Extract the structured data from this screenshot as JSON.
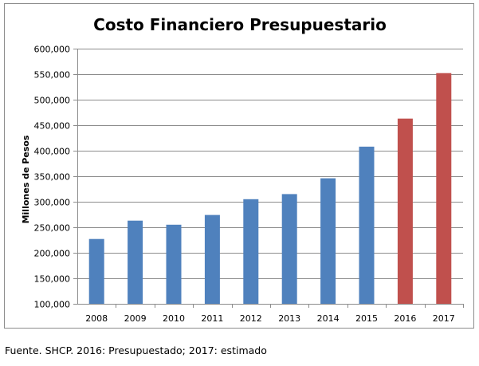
{
  "chart_data": {
    "type": "bar",
    "title": "Costo Financiero Presupuestario",
    "xlabel": "",
    "ylabel": "Millones de Pesos",
    "ylim": [
      100000,
      600000
    ],
    "ytick_step": 50000,
    "ytick_labels": [
      "100,000",
      "150,000",
      "200,000",
      "250,000",
      "300,000",
      "350,000",
      "400,000",
      "450,000",
      "500,000",
      "550,000",
      "600,000"
    ],
    "grid": true,
    "legend": "none",
    "categories": [
      "2008",
      "2009",
      "2010",
      "2011",
      "2012",
      "2013",
      "2014",
      "2015",
      "2016",
      "2017"
    ],
    "values": [
      227000,
      263000,
      255000,
      274000,
      305000,
      315000,
      346000,
      408000,
      463000,
      552000
    ],
    "bar_colors": [
      "#4f81bd",
      "#4f81bd",
      "#4f81bd",
      "#4f81bd",
      "#4f81bd",
      "#4f81bd",
      "#4f81bd",
      "#4f81bd",
      "#c0504d",
      "#c0504d"
    ]
  },
  "footer": {
    "source": "Fuente. SHCP. 2016: Presupuestado; 2017: estimado"
  }
}
